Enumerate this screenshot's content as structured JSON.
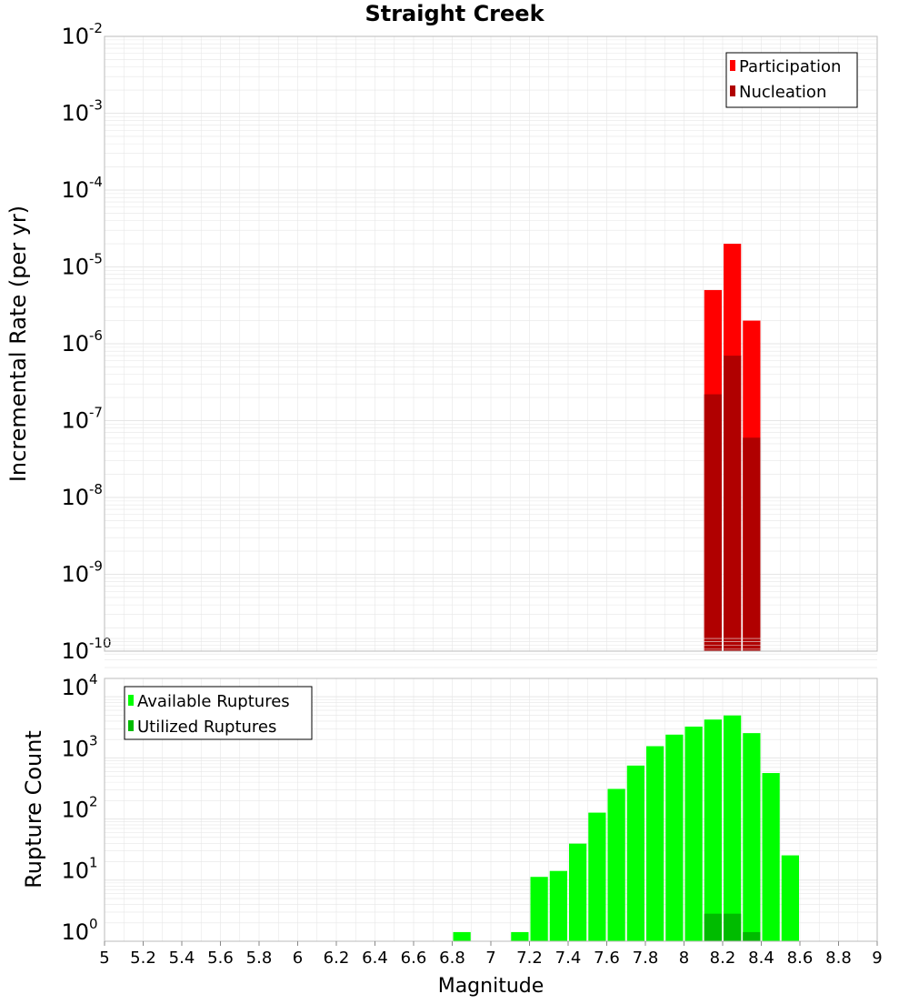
{
  "title": "Straight Creek",
  "colors": {
    "participation": "#ff0000",
    "nucleation": "#b00000",
    "available": "#00ff00",
    "utilized": "#00bb00",
    "grid": "#e6e6e6",
    "frame": "#bbbbbb"
  },
  "chart_data": [
    {
      "type": "bar",
      "scale": "log",
      "ylabel": "Incremental Rate (per yr)",
      "ylim_exp": [
        -10,
        -2
      ],
      "x": [
        8.15,
        8.25,
        8.35
      ],
      "series": [
        {
          "name": "Participation",
          "values": [
            5e-06,
            2e-05,
            2e-06
          ]
        },
        {
          "name": "Nucleation",
          "values": [
            2.2e-07,
            7e-07,
            6e-08
          ]
        }
      ],
      "legend": [
        "Participation",
        "Nucleation"
      ],
      "legend_position": "top-right"
    },
    {
      "type": "bar",
      "scale": "log",
      "ylabel": "Rupture Count",
      "ylim_exp": [
        0,
        4
      ],
      "x": [
        6.85,
        7.15,
        7.25,
        7.35,
        7.45,
        7.55,
        7.65,
        7.75,
        7.85,
        7.95,
        8.05,
        8.15,
        8.25,
        8.35,
        8.45,
        8.55
      ],
      "series": [
        {
          "name": "Available Ruptures",
          "values": [
            1,
            1,
            8,
            10,
            28,
            90,
            220,
            530,
            1100,
            1700,
            2300,
            3000,
            3500,
            1800,
            400,
            18
          ]
        },
        {
          "name": "Utilized Ruptures",
          "x": [
            8.15,
            8.25,
            8.35
          ],
          "values": [
            2,
            2,
            1
          ]
        }
      ],
      "legend": [
        "Available Ruptures",
        "Utilized Ruptures"
      ],
      "legend_position": "top-left"
    }
  ],
  "xaxis": {
    "label": "Magnitude",
    "range": [
      5,
      9
    ],
    "ticks": [
      {
        "value": 5,
        "label": "5"
      },
      {
        "value": 5.2,
        "label": "5.2"
      },
      {
        "value": 5.4,
        "label": "5.4"
      },
      {
        "value": 5.6,
        "label": "5.6"
      },
      {
        "value": 5.8,
        "label": "5.8"
      },
      {
        "value": 6,
        "label": "6"
      },
      {
        "value": 6.2,
        "label": "6.2"
      },
      {
        "value": 6.4,
        "label": "6.4"
      },
      {
        "value": 6.6,
        "label": "6.6"
      },
      {
        "value": 6.8,
        "label": "6.8"
      },
      {
        "value": 7,
        "label": "7"
      },
      {
        "value": 7.2,
        "label": "7.2"
      },
      {
        "value": 7.4,
        "label": "7.4"
      },
      {
        "value": 7.6,
        "label": "7.6"
      },
      {
        "value": 7.8,
        "label": "7.8"
      },
      {
        "value": 8,
        "label": "8"
      },
      {
        "value": 8.2,
        "label": "8.2"
      },
      {
        "value": 8.4,
        "label": "8.4"
      },
      {
        "value": 8.6,
        "label": "8.6"
      },
      {
        "value": 8.8,
        "label": "8.8"
      },
      {
        "value": 9,
        "label": "9"
      }
    ],
    "bin_width": 0.1
  },
  "top_yticks": [
    {
      "value": -2,
      "base": "10",
      "exp": "-2"
    },
    {
      "value": -3,
      "base": "10",
      "exp": "-3"
    },
    {
      "value": -4,
      "base": "10",
      "exp": "-4"
    },
    {
      "value": -5,
      "base": "10",
      "exp": "-5"
    },
    {
      "value": -6,
      "base": "10",
      "exp": "-6"
    },
    {
      "value": -7,
      "base": "10",
      "exp": "-7"
    },
    {
      "value": -8,
      "base": "10",
      "exp": "-8"
    },
    {
      "value": -9,
      "base": "10",
      "exp": "-9"
    },
    {
      "value": -10,
      "base": "10",
      "exp": "-10"
    }
  ],
  "bottom_yticks": [
    {
      "value": 4,
      "base": "10",
      "exp": "4"
    },
    {
      "value": 3,
      "base": "10",
      "exp": "3"
    },
    {
      "value": 2,
      "base": "10",
      "exp": "2"
    },
    {
      "value": 1,
      "base": "10",
      "exp": "1"
    },
    {
      "value": 0,
      "base": "10",
      "exp": "0"
    }
  ]
}
